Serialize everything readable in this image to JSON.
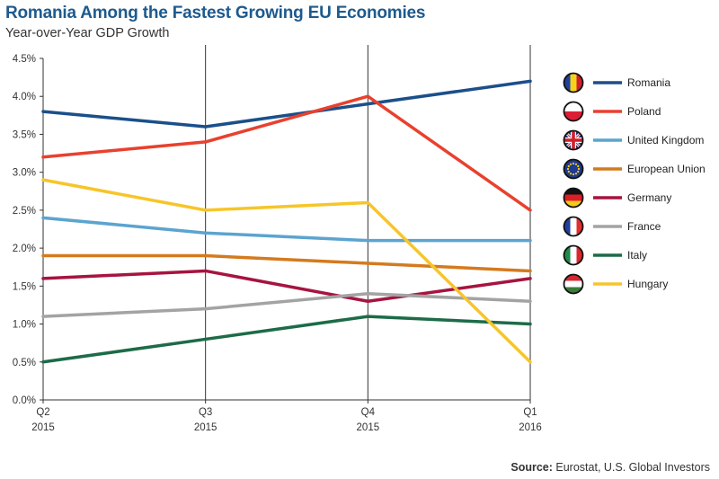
{
  "header": {
    "title": "Romania Among the Fastest Growing EU Economies",
    "subtitle": "Year-over-Year GDP Growth"
  },
  "footer": {
    "source_label": "Source:",
    "source_text": "Eurostat, U.S. Global Investors"
  },
  "chart_data": {
    "type": "line",
    "title": "Romania Among the Fastest Growing EU Economies",
    "subtitle": "Year-over-Year GDP Growth",
    "xlabel": "",
    "ylabel": "",
    "categories": [
      {
        "quarter": "Q2",
        "year": "2015"
      },
      {
        "quarter": "Q3",
        "year": "2015"
      },
      {
        "quarter": "Q4",
        "year": "2015"
      },
      {
        "quarter": "Q1",
        "year": "2016"
      }
    ],
    "y_ticks": [
      "0.0%",
      "0.5%",
      "1.0%",
      "1.5%",
      "2.0%",
      "2.5%",
      "3.0%",
      "3.5%",
      "4.0%",
      "4.5%"
    ],
    "ylim": [
      0,
      4.5
    ],
    "y_unit": "%",
    "grid": false,
    "legend_position": "right",
    "series": [
      {
        "name": "Romania",
        "color": "#1b4f8a",
        "flag": "romania-flag-icon",
        "values": [
          3.8,
          3.6,
          3.9,
          4.2
        ]
      },
      {
        "name": "Poland",
        "color": "#e8412e",
        "flag": "poland-flag-icon",
        "values": [
          3.2,
          3.4,
          4.0,
          2.5
        ]
      },
      {
        "name": "United Kingdom",
        "color": "#5ba4cf",
        "flag": "uk-flag-icon",
        "values": [
          2.4,
          2.2,
          2.1,
          2.1
        ]
      },
      {
        "name": "European Union",
        "color": "#d47a1e",
        "flag": "eu-flag-icon",
        "values": [
          1.9,
          1.9,
          1.8,
          1.7
        ]
      },
      {
        "name": "Germany",
        "color": "#a6143f",
        "flag": "germany-flag-icon",
        "values": [
          1.6,
          1.7,
          1.3,
          1.6
        ]
      },
      {
        "name": "France",
        "color": "#a3a3a3",
        "flag": "france-flag-icon",
        "values": [
          1.1,
          1.2,
          1.4,
          1.3
        ]
      },
      {
        "name": "Italy",
        "color": "#1d6b48",
        "flag": "italy-flag-icon",
        "values": [
          0.5,
          0.8,
          1.1,
          1.0
        ]
      },
      {
        "name": "Hungary",
        "color": "#f7c52a",
        "flag": "hungary-flag-icon",
        "values": [
          2.9,
          2.5,
          2.6,
          0.5
        ]
      }
    ]
  }
}
